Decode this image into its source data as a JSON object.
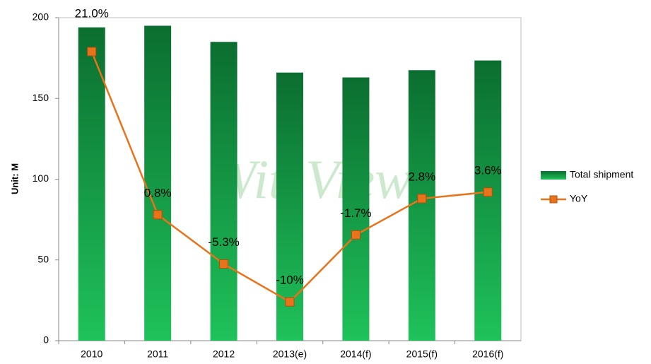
{
  "chart_data": {
    "type": "bar_line",
    "y_axis_label": "Unit: M",
    "watermark": "WitsView",
    "categories": [
      "2010",
      "2011",
      "2012",
      "2013(e)",
      "2014(f)",
      "2015(f)",
      "2016(f)"
    ],
    "series": [
      {
        "name": "Total shipment",
        "type": "bar",
        "color": "#139a43",
        "values": [
          194,
          195,
          185,
          166,
          163,
          167.5,
          173.5
        ]
      },
      {
        "name": "YoY",
        "type": "line",
        "axis": "y2",
        "color": "#e8731a",
        "values": [
          21.0,
          0.8,
          -5.3,
          -10,
          -1.7,
          2.8,
          3.6
        ],
        "value_labels": [
          "21.0%",
          "0.8%",
          "-5.3%",
          "-10%",
          "-1.7%",
          "2.8%",
          "3.6%"
        ]
      }
    ],
    "ylim": [
      0,
      200
    ],
    "yticks": [
      0,
      50,
      100,
      150,
      200
    ],
    "y2lim": [
      -14.8,
      25.2
    ],
    "legend": "right"
  }
}
